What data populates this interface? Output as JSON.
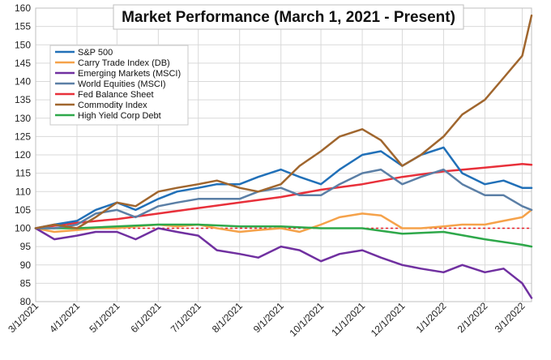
{
  "chart_data": {
    "type": "line",
    "title": "Market Performance (March 1, 2021 - Present)",
    "xlabel": "",
    "ylabel": "",
    "ylim": [
      80,
      160
    ],
    "yticks": [
      80,
      85,
      90,
      95,
      100,
      105,
      110,
      115,
      120,
      125,
      130,
      135,
      140,
      145,
      150,
      155,
      160
    ],
    "xlim": [
      "3/1/2021",
      "3/8/2022"
    ],
    "xticks": [
      "3/1/2021",
      "4/1/2021",
      "5/1/2021",
      "6/1/2021",
      "7/1/2021",
      "8/1/2021",
      "9/1/2021",
      "10/1/2021",
      "11/1/2021",
      "12/1/2021",
      "1/1/2022",
      "2/1/2022",
      "3/1/2022"
    ],
    "grid": true,
    "legend_position": "top-left",
    "reference_line": {
      "y": 100,
      "color": "#e8202a",
      "style": "dashed"
    },
    "series": [
      {
        "name": "S&P 500",
        "color": "#2170b8",
        "points": [
          [
            "3/1/2021",
            100
          ],
          [
            "3/15/2021",
            101
          ],
          [
            "4/1/2021",
            102
          ],
          [
            "4/15/2021",
            105
          ],
          [
            "5/1/2021",
            107
          ],
          [
            "5/15/2021",
            105
          ],
          [
            "6/1/2021",
            108
          ],
          [
            "6/15/2021",
            110
          ],
          [
            "7/1/2021",
            111
          ],
          [
            "7/15/2021",
            112
          ],
          [
            "8/1/2021",
            112
          ],
          [
            "8/15/2021",
            114
          ],
          [
            "9/1/2021",
            116
          ],
          [
            "9/15/2021",
            114
          ],
          [
            "10/1/2021",
            112
          ],
          [
            "10/15/2021",
            116
          ],
          [
            "11/1/2021",
            120
          ],
          [
            "11/15/2021",
            121
          ],
          [
            "12/1/2021",
            117
          ],
          [
            "12/15/2021",
            120
          ],
          [
            "1/1/2022",
            122
          ],
          [
            "1/15/2022",
            115
          ],
          [
            "2/1/2022",
            112
          ],
          [
            "2/15/2022",
            113
          ],
          [
            "3/1/2022",
            111
          ],
          [
            "3/8/2022",
            111
          ]
        ]
      },
      {
        "name": "Carry Trade Index (DB)",
        "color": "#f5a24a",
        "points": [
          [
            "3/1/2021",
            100
          ],
          [
            "3/15/2021",
            99
          ],
          [
            "4/1/2021",
            99.5
          ],
          [
            "4/15/2021",
            100
          ],
          [
            "5/1/2021",
            100
          ],
          [
            "5/15/2021",
            100.5
          ],
          [
            "6/1/2021",
            101
          ],
          [
            "6/15/2021",
            100.5
          ],
          [
            "7/1/2021",
            101
          ],
          [
            "7/15/2021",
            100
          ],
          [
            "8/1/2021",
            99
          ],
          [
            "8/15/2021",
            99.5
          ],
          [
            "9/1/2021",
            100
          ],
          [
            "9/15/2021",
            99
          ],
          [
            "10/1/2021",
            101
          ],
          [
            "10/15/2021",
            103
          ],
          [
            "11/1/2021",
            104
          ],
          [
            "11/15/2021",
            103.5
          ],
          [
            "12/1/2021",
            100
          ],
          [
            "12/15/2021",
            100
          ],
          [
            "1/1/2022",
            100.5
          ],
          [
            "1/15/2022",
            101
          ],
          [
            "2/1/2022",
            101
          ],
          [
            "2/15/2022",
            102
          ],
          [
            "3/1/2022",
            103
          ],
          [
            "3/8/2022",
            105
          ]
        ]
      },
      {
        "name": "Emerging Markets (MSCI)",
        "color": "#7030a0",
        "points": [
          [
            "3/1/2021",
            100
          ],
          [
            "3/15/2021",
            97
          ],
          [
            "4/1/2021",
            98
          ],
          [
            "4/15/2021",
            99
          ],
          [
            "5/1/2021",
            99
          ],
          [
            "5/15/2021",
            97
          ],
          [
            "6/1/2021",
            100
          ],
          [
            "6/15/2021",
            99
          ],
          [
            "7/1/2021",
            98
          ],
          [
            "7/15/2021",
            94
          ],
          [
            "8/1/2021",
            93
          ],
          [
            "8/15/2021",
            92
          ],
          [
            "9/1/2021",
            95
          ],
          [
            "9/15/2021",
            94
          ],
          [
            "10/1/2021",
            91
          ],
          [
            "10/15/2021",
            93
          ],
          [
            "11/1/2021",
            94
          ],
          [
            "11/15/2021",
            92
          ],
          [
            "12/1/2021",
            90
          ],
          [
            "12/15/2021",
            89
          ],
          [
            "1/1/2022",
            88
          ],
          [
            "1/15/2022",
            90
          ],
          [
            "2/1/2022",
            88
          ],
          [
            "2/15/2022",
            89
          ],
          [
            "3/1/2022",
            85
          ],
          [
            "3/8/2022",
            81
          ]
        ]
      },
      {
        "name": "World Equities (MSCI)",
        "color": "#5b7fa6",
        "points": [
          [
            "3/1/2021",
            100
          ],
          [
            "3/15/2021",
            100
          ],
          [
            "4/1/2021",
            101
          ],
          [
            "4/15/2021",
            104
          ],
          [
            "5/1/2021",
            105
          ],
          [
            "5/15/2021",
            103
          ],
          [
            "6/1/2021",
            106
          ],
          [
            "6/15/2021",
            107
          ],
          [
            "7/1/2021",
            108
          ],
          [
            "7/15/2021",
            108
          ],
          [
            "8/1/2021",
            108
          ],
          [
            "8/15/2021",
            110
          ],
          [
            "9/1/2021",
            111
          ],
          [
            "9/15/2021",
            109
          ],
          [
            "10/1/2021",
            109
          ],
          [
            "10/15/2021",
            112
          ],
          [
            "11/1/2021",
            115
          ],
          [
            "11/15/2021",
            116
          ],
          [
            "12/1/2021",
            112
          ],
          [
            "12/15/2021",
            114
          ],
          [
            "1/1/2022",
            116
          ],
          [
            "1/15/2022",
            112
          ],
          [
            "2/1/2022",
            109
          ],
          [
            "2/15/2022",
            109
          ],
          [
            "3/1/2022",
            106
          ],
          [
            "3/8/2022",
            105
          ]
        ]
      },
      {
        "name": "Fed Balance Sheet",
        "color": "#e8303a",
        "points": [
          [
            "3/1/2021",
            100
          ],
          [
            "4/1/2021",
            101.5
          ],
          [
            "5/1/2021",
            102.5
          ],
          [
            "6/1/2021",
            104
          ],
          [
            "7/1/2021",
            105.5
          ],
          [
            "8/1/2021",
            107
          ],
          [
            "9/1/2021",
            108.5
          ],
          [
            "10/1/2021",
            110.5
          ],
          [
            "11/1/2021",
            112
          ],
          [
            "12/1/2021",
            114
          ],
          [
            "1/1/2022",
            115.5
          ],
          [
            "2/1/2022",
            116.5
          ],
          [
            "3/1/2022",
            117.5
          ],
          [
            "3/8/2022",
            117.3
          ]
        ]
      },
      {
        "name": "Commodity Index",
        "color": "#a0662e",
        "points": [
          [
            "3/1/2021",
            100
          ],
          [
            "3/15/2021",
            101
          ],
          [
            "4/1/2021",
            100
          ],
          [
            "4/15/2021",
            103
          ],
          [
            "5/1/2021",
            107
          ],
          [
            "5/15/2021",
            106
          ],
          [
            "6/1/2021",
            110
          ],
          [
            "6/15/2021",
            111
          ],
          [
            "7/1/2021",
            112
          ],
          [
            "7/15/2021",
            113
          ],
          [
            "8/1/2021",
            111
          ],
          [
            "8/15/2021",
            110
          ],
          [
            "9/1/2021",
            112
          ],
          [
            "9/15/2021",
            117
          ],
          [
            "10/1/2021",
            121
          ],
          [
            "10/15/2021",
            125
          ],
          [
            "11/1/2021",
            127
          ],
          [
            "11/15/2021",
            124
          ],
          [
            "12/1/2021",
            117
          ],
          [
            "12/15/2021",
            120
          ],
          [
            "1/1/2022",
            125
          ],
          [
            "1/15/2022",
            131
          ],
          [
            "2/1/2022",
            135
          ],
          [
            "2/15/2022",
            141
          ],
          [
            "3/1/2022",
            147
          ],
          [
            "3/8/2022",
            158
          ]
        ]
      },
      {
        "name": "High Yield Corp Debt",
        "color": "#2ea84a",
        "points": [
          [
            "3/1/2021",
            100
          ],
          [
            "4/1/2021",
            100
          ],
          [
            "5/1/2021",
            100.5
          ],
          [
            "6/1/2021",
            101
          ],
          [
            "7/1/2021",
            101
          ],
          [
            "8/1/2021",
            100.5
          ],
          [
            "9/1/2021",
            100.5
          ],
          [
            "10/1/2021",
            100
          ],
          [
            "11/1/2021",
            100
          ],
          [
            "12/1/2021",
            98.5
          ],
          [
            "1/1/2022",
            99
          ],
          [
            "2/1/2022",
            97
          ],
          [
            "3/1/2022",
            95.5
          ],
          [
            "3/8/2022",
            95
          ]
        ]
      }
    ]
  }
}
